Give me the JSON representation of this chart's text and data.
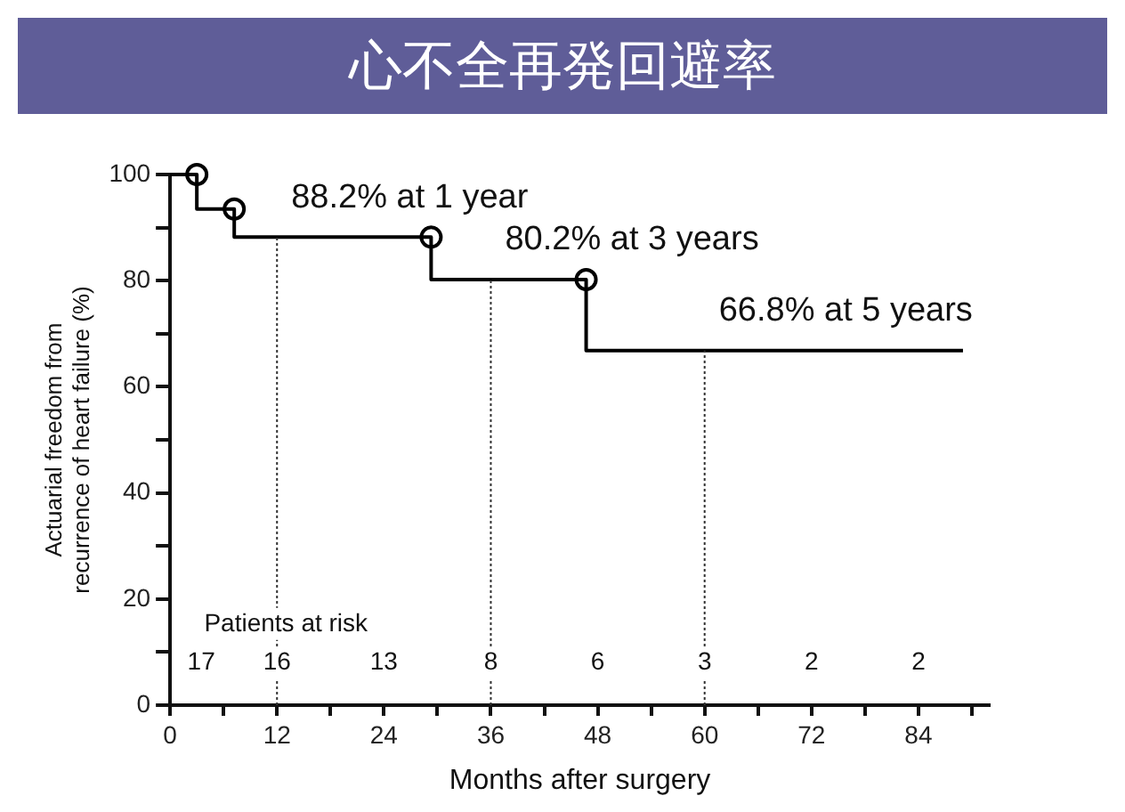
{
  "chart_data": {
    "type": "step",
    "title": "心不全再発回避率",
    "xlabel": "Months after surgery",
    "ylabel": "Actuarial freedom from\nrecurrence of heart failure (%)",
    "series": [
      {
        "color": "#000000",
        "marker": "none",
        "x": [
          0,
          3,
          7.2,
          29.3,
          46.7,
          89
        ],
        "values": [
          100,
          93.5,
          88.2,
          80.2,
          66.8,
          66.8
        ]
      },
      {
        "type": "scatter",
        "color": "#000000",
        "marker": "circle",
        "x": [
          3,
          7.2,
          29.3,
          46.7
        ],
        "values": [
          100,
          93.5,
          88.2,
          80.2
        ]
      }
    ],
    "xlim": [
      0,
      92
    ],
    "ylim": [
      0,
      100
    ],
    "xticks": [
      0,
      {
        "value": 6,
        "label": null
      },
      12,
      {
        "value": 18,
        "label": null
      },
      24,
      {
        "value": 30,
        "label": null
      },
      36,
      {
        "value": 42,
        "label": null
      },
      48,
      {
        "value": 54,
        "label": null
      },
      60,
      {
        "value": 66,
        "label": null
      },
      72,
      {
        "value": 78,
        "label": null
      },
      84,
      {
        "value": 90,
        "label": null
      }
    ],
    "yticks": [
      0,
      {
        "value": 10,
        "label": null
      },
      20,
      {
        "value": 30,
        "label": null
      },
      40,
      {
        "value": 50,
        "label": null
      },
      60,
      {
        "value": 70,
        "label": null
      },
      80,
      {
        "value": 90,
        "label": null
      },
      100
    ],
    "ref_lines": [
      {
        "axis": "x",
        "value": 12,
        "line_style": "dotted",
        "color": "#333333"
      },
      {
        "axis": "x",
        "value": 36,
        "line_style": "dotted",
        "color": "#333333"
      },
      {
        "axis": "x",
        "value": 60,
        "line_style": "dotted",
        "color": "#333333"
      }
    ],
    "annotations": [
      {
        "text": "88.2% at 1 year",
        "x": 12,
        "y": 88.2
      },
      {
        "text": "80.2% at 3 years",
        "x": 36,
        "y": 80.2
      },
      {
        "text": "66.8% at 5 years",
        "x": 60,
        "y": 66.8
      },
      {
        "text": "Patients at risk",
        "x": 13,
        "y": 15.3
      },
      {
        "text": "17",
        "x": 3.5,
        "y": 8
      },
      {
        "text": "16",
        "x": 12,
        "y": 8
      },
      {
        "text": "13",
        "x": 24,
        "y": 8
      },
      {
        "text": "8",
        "x": 36,
        "y": 8
      },
      {
        "text": "6",
        "x": 48,
        "y": 8
      },
      {
        "text": "3",
        "x": 60,
        "y": 8
      },
      {
        "text": "2",
        "x": 72,
        "y": 8
      },
      {
        "text": "2",
        "x": 84,
        "y": 8
      }
    ],
    "grid": false,
    "legend": false
  }
}
